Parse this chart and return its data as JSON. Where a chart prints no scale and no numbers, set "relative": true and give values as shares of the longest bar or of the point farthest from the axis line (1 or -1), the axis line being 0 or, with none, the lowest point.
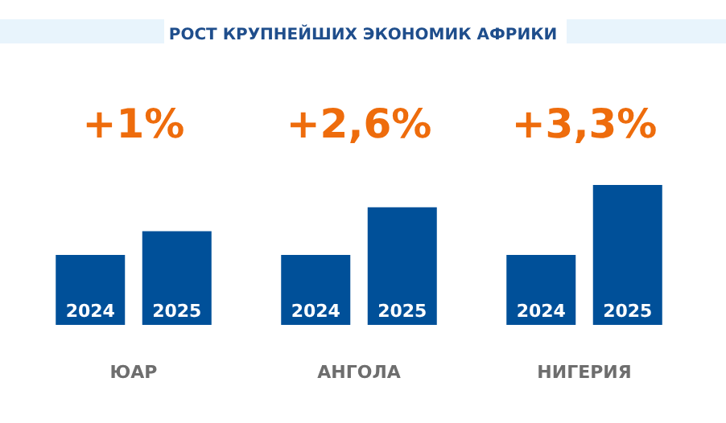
{
  "chart_data": {
    "type": "bar",
    "title": "РОСТ КРУПНЕЙШИХ ЭКОНОМИК АФРИКИ",
    "relative": true,
    "categories": [
      "ЮАР",
      "АНГОЛА",
      "НИГЕРИЯ"
    ],
    "series": [
      {
        "name": "2024",
        "color": "#005099",
        "values": [
          0.5,
          0.5,
          0.5
        ]
      },
      {
        "name": "2025",
        "color": "#005099",
        "values": [
          0.67,
          0.84,
          1
        ]
      }
    ],
    "annotations": [
      "+1%",
      "+2,6%",
      "+3,3%"
    ],
    "legend": false,
    "grid": false
  }
}
